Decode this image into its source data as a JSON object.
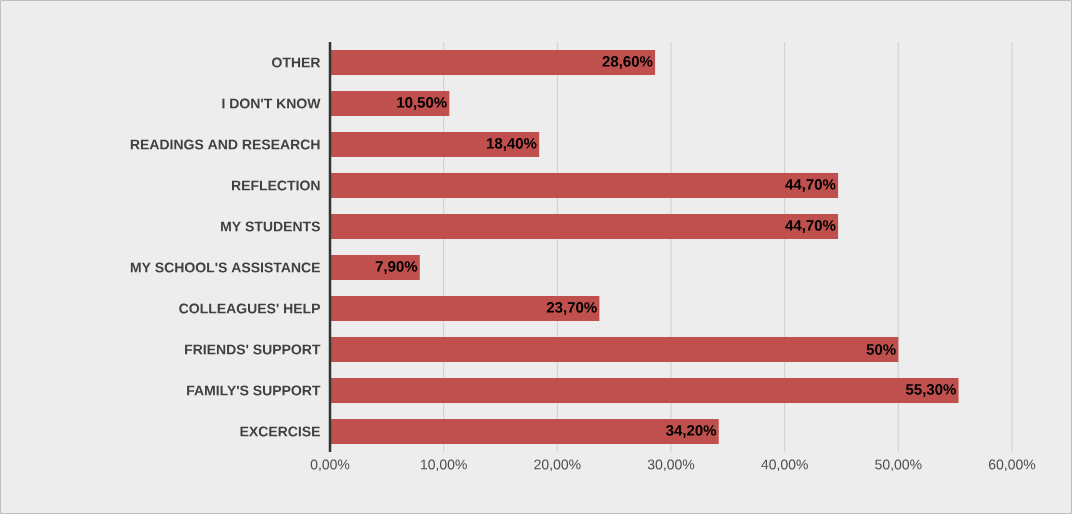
{
  "chart_data": {
    "type": "bar",
    "orientation": "horizontal",
    "categories": [
      "OTHER",
      "I DON'T KNOW",
      "READINGS AND RESEARCH",
      "REFLECTION",
      "MY STUDENTS",
      "MY SCHOOL'S ASSISTANCE",
      "COLLEAGUES' HELP",
      "FRIENDS' SUPPORT",
      "FAMILY'S SUPPORT",
      "EXCERCISE"
    ],
    "values": [
      28.6,
      10.5,
      18.4,
      44.7,
      44.7,
      7.9,
      23.7,
      50,
      55.3,
      34.2
    ],
    "value_labels": [
      "28,60%",
      "10,50%",
      "18,40%",
      "44,70%",
      "44,70%",
      "7,90%",
      "23,70%",
      "50%",
      "55,30%",
      "34,20%"
    ],
    "color": "#c0504d",
    "xlim": [
      0,
      60
    ],
    "xticks": [
      {
        "value": 0,
        "label": "0,00%"
      },
      {
        "value": 10,
        "label": "10,00%"
      },
      {
        "value": 20,
        "label": "20,00%"
      },
      {
        "value": 30,
        "label": "30,00%"
      },
      {
        "value": 40,
        "label": "40,00%"
      },
      {
        "value": 50,
        "label": "50,00%"
      },
      {
        "value": 60,
        "label": "60,00%"
      }
    ],
    "grid": "x"
  }
}
